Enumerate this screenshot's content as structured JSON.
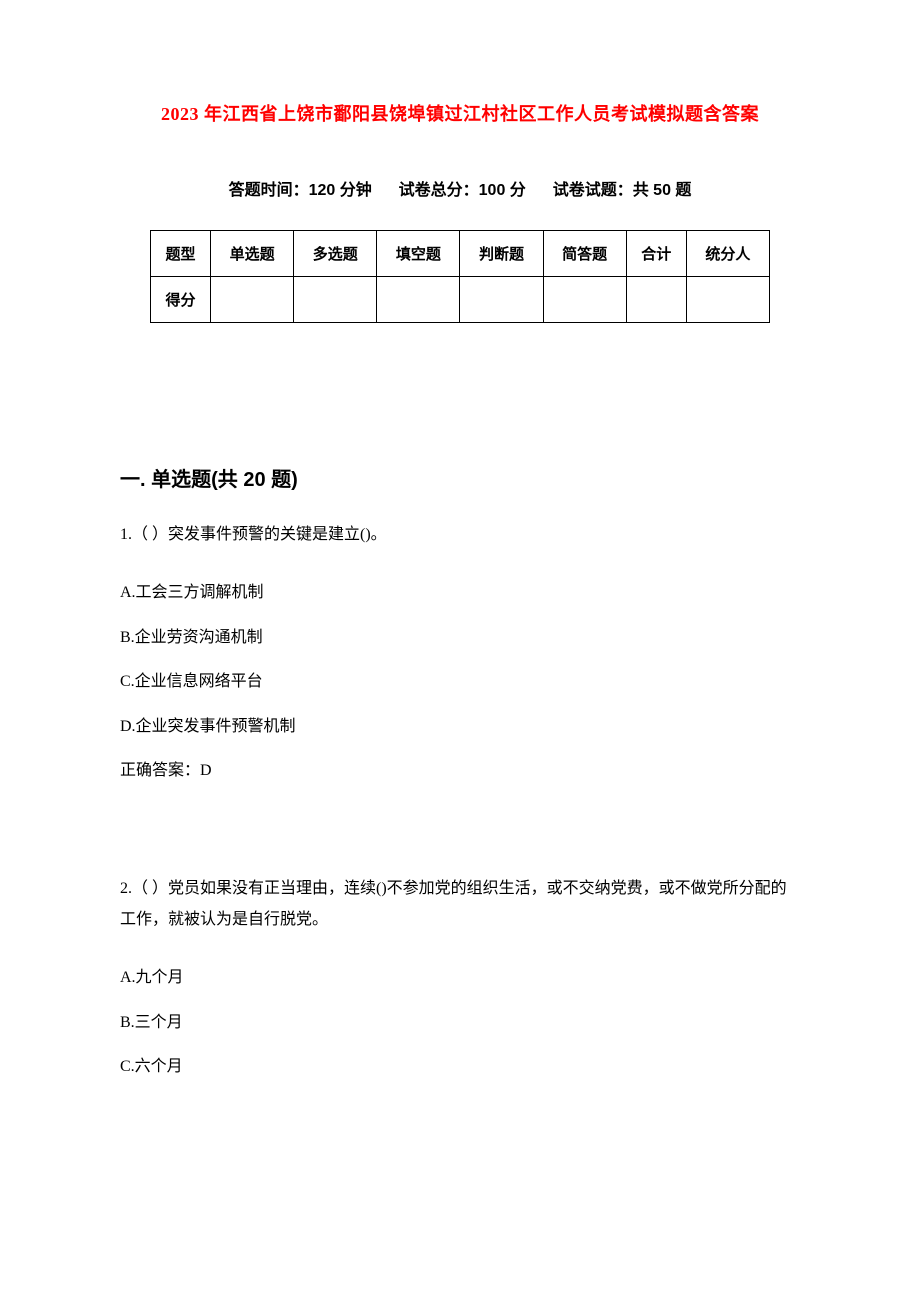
{
  "title_color": "#ff0000",
  "title": "2023 年江西省上饶市鄱阳县饶埠镇过江村社区工作人员考试模拟题含答案",
  "meta": {
    "time_label": "答题时间：",
    "time_value": "120 分钟",
    "total_label": "试卷总分：",
    "total_value": "100 分",
    "count_label": "试卷试题：",
    "count_value": "共 50 题"
  },
  "score_table": {
    "row1_label": "题型",
    "cols": [
      "单选题",
      "多选题",
      "填空题",
      "判断题",
      "简答题",
      "合计",
      "统分人"
    ],
    "row2_label": "得分"
  },
  "section1": {
    "header": "一. 单选题(共 20 题)"
  },
  "q1": {
    "stem": "1.（ ）突发事件预警的关键是建立()。",
    "optA": "A.工会三方调解机制",
    "optB": "B.企业劳资沟通机制",
    "optC": "C.企业信息网络平台",
    "optD": "D.企业突发事件预警机制",
    "answer": "正确答案：D"
  },
  "q2": {
    "stem": "2.（ ）党员如果没有正当理由，连续()不参加党的组织生活，或不交纳党费，或不做党所分配的工作，就被认为是自行脱党。",
    "optA": "A.九个月",
    "optB": "B.三个月",
    "optC": "C.六个月"
  }
}
